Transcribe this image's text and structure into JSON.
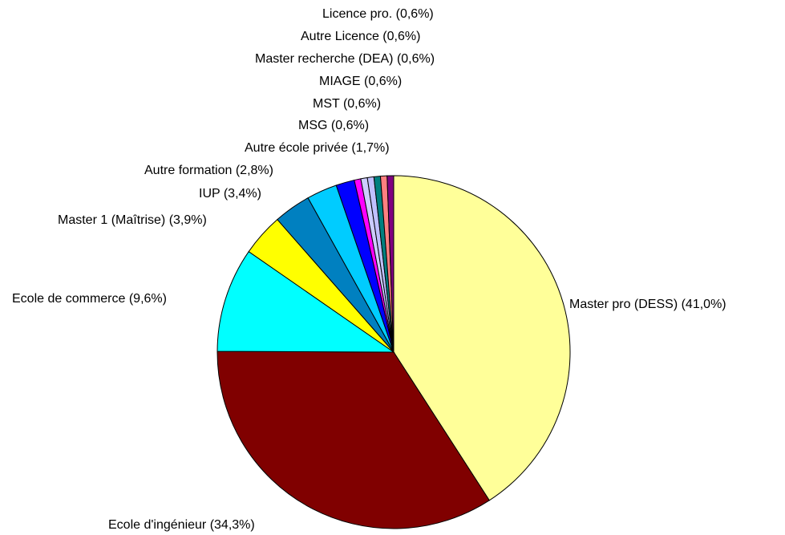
{
  "chart_data": {
    "type": "pie",
    "categories": [
      "Master pro (DESS)",
      "Ecole d'ingénieur",
      "Ecole de commerce",
      "Master 1 (Maîtrise)",
      "IUP",
      "Autre formation",
      "Autre école privée",
      "MSG",
      "MST",
      "MIAGE",
      "Master recherche (DEA)",
      "Autre Licence",
      "Licence pro."
    ],
    "values": [
      41.0,
      34.3,
      9.6,
      3.9,
      3.4,
      2.8,
      1.7,
      0.6,
      0.6,
      0.6,
      0.6,
      0.6,
      0.6
    ],
    "value_labels": [
      "(41,0%)",
      "(34,3%)",
      "(9,6%)",
      "(3,9%)",
      "(3,4%)",
      "(2,8%)",
      "(1,7%)",
      "(0,6%)",
      "(0,6%)",
      "(0,6%)",
      "(0,6%)",
      "(0,6%)",
      "(0,6%)"
    ],
    "colors": [
      "#ffff99",
      "#800000",
      "#00ffff",
      "#ffff00",
      "#0080c0",
      "#00ccff",
      "#0000ff",
      "#ff00ff",
      "#ccccff",
      "#c0c0ff",
      "#008080",
      "#ff8080",
      "#800080"
    ]
  }
}
